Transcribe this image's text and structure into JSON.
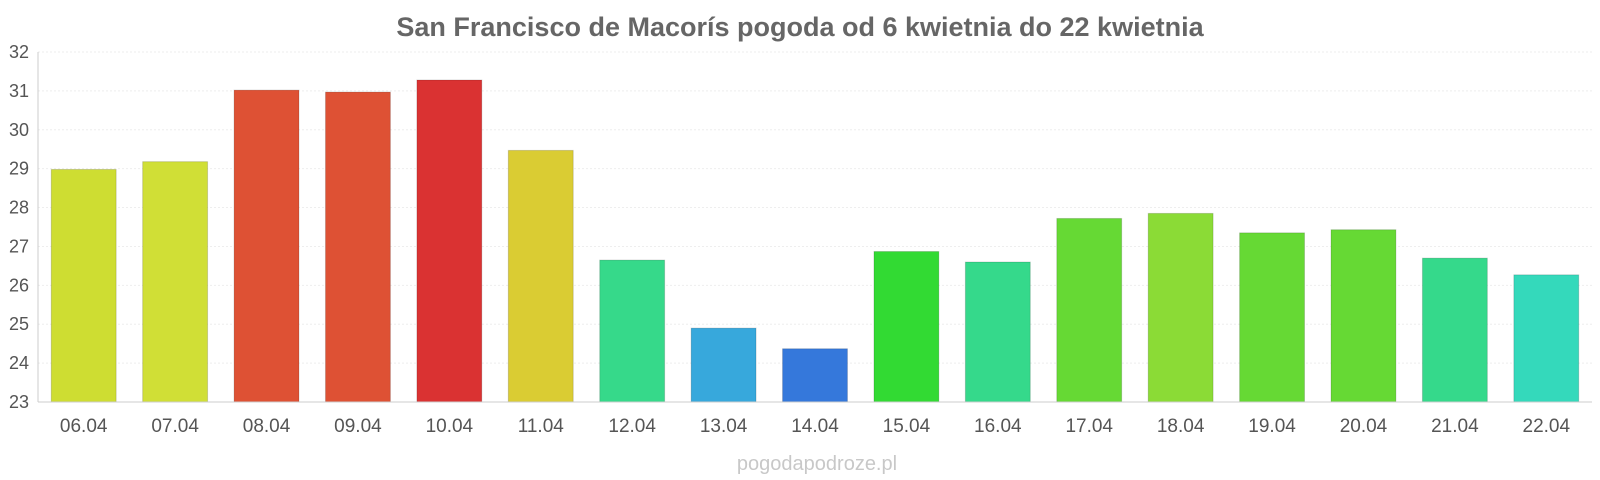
{
  "chart_data": {
    "type": "bar",
    "title": "San Francisco de Macorís pogoda od 6 kwietnia do 22 kwietnia",
    "xlabel": "",
    "ylabel": "",
    "ylim": [
      23,
      32
    ],
    "yticks": [
      "23",
      "24",
      "25",
      "26",
      "27",
      "28",
      "29",
      "30",
      "31",
      "32"
    ],
    "grid": true,
    "categories": [
      "06.04",
      "07.04",
      "08.04",
      "09.04",
      "10.04",
      "11.04",
      "12.04",
      "13.04",
      "14.04",
      "15.04",
      "16.04",
      "17.04",
      "18.04",
      "19.04",
      "20.04",
      "21.04",
      "22.04"
    ],
    "values": [
      28.98,
      29.18,
      31.02,
      30.97,
      31.28,
      29.47,
      26.65,
      24.9,
      24.37,
      26.87,
      26.6,
      27.72,
      27.85,
      27.35,
      27.43,
      26.7,
      26.27
    ],
    "colors": [
      "#cedd32",
      "#d0df36",
      "#de5134",
      "#de5134",
      "#da3232",
      "#dacc33",
      "#36d98a",
      "#37a8dc",
      "#3578db",
      "#32da33",
      "#35d98b",
      "#66d934",
      "#8bdb36",
      "#66d934",
      "#66d934",
      "#35d98b",
      "#34d9bb"
    ]
  },
  "watermark": "pogodapodroze.pl"
}
